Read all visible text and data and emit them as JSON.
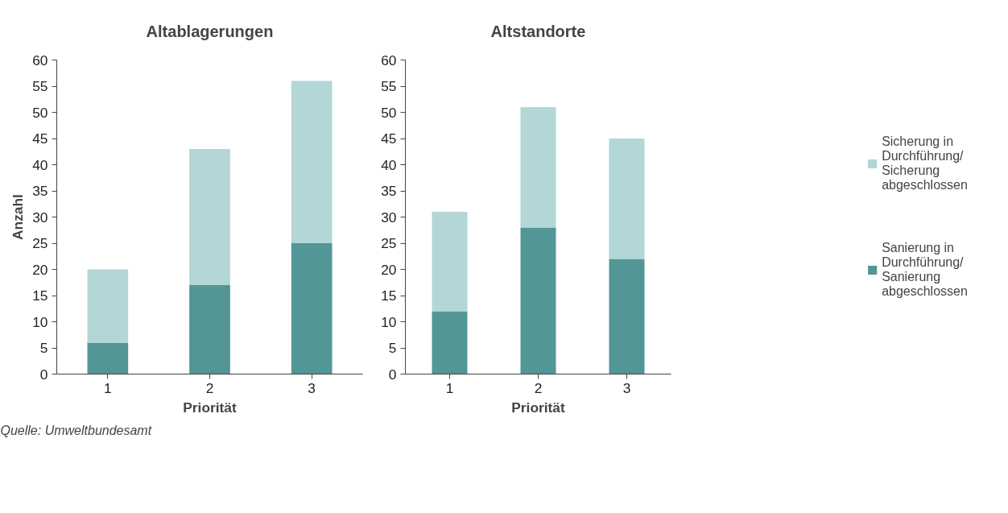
{
  "chart_data": [
    {
      "type": "bar",
      "title": "Altablagerungen",
      "xlabel": "Priorität",
      "ylabel": "Anzahl",
      "categories": [
        "1",
        "2",
        "3"
      ],
      "stacked": true,
      "series": [
        {
          "color": "#529696",
          "values": [
            6,
            17,
            25
          ]
        },
        {
          "color": "#b3d6d7",
          "values": [
            14,
            26,
            31
          ]
        }
      ],
      "ylim": [
        0,
        60
      ],
      "yticks": [
        0,
        5,
        10,
        15,
        20,
        25,
        30,
        35,
        40,
        45,
        50,
        55,
        60
      ],
      "grid": false,
      "annotations": [
        "Quelle: Umweltbundesamt"
      ]
    },
    {
      "type": "bar",
      "title": "Altstandorte",
      "xlabel": "Priorität",
      "categories": [
        "1",
        "2",
        "3"
      ],
      "stacked": true,
      "series": [
        {
          "name": "Sanierung in Durchführung/ Sanierung abgeschlossen",
          "color": "#529696",
          "values": [
            12,
            28,
            22
          ]
        },
        {
          "name": "Sicherung in Durchführung/ Sicherung abgeschlossen",
          "color": "#b3d6d7",
          "values": [
            19,
            23,
            23
          ]
        }
      ],
      "ylim": [
        0,
        60
      ],
      "yticks": [
        0,
        5,
        10,
        15,
        20,
        25,
        30,
        35,
        40,
        45,
        50,
        55,
        60
      ],
      "grid": false,
      "legend": "right"
    }
  ]
}
